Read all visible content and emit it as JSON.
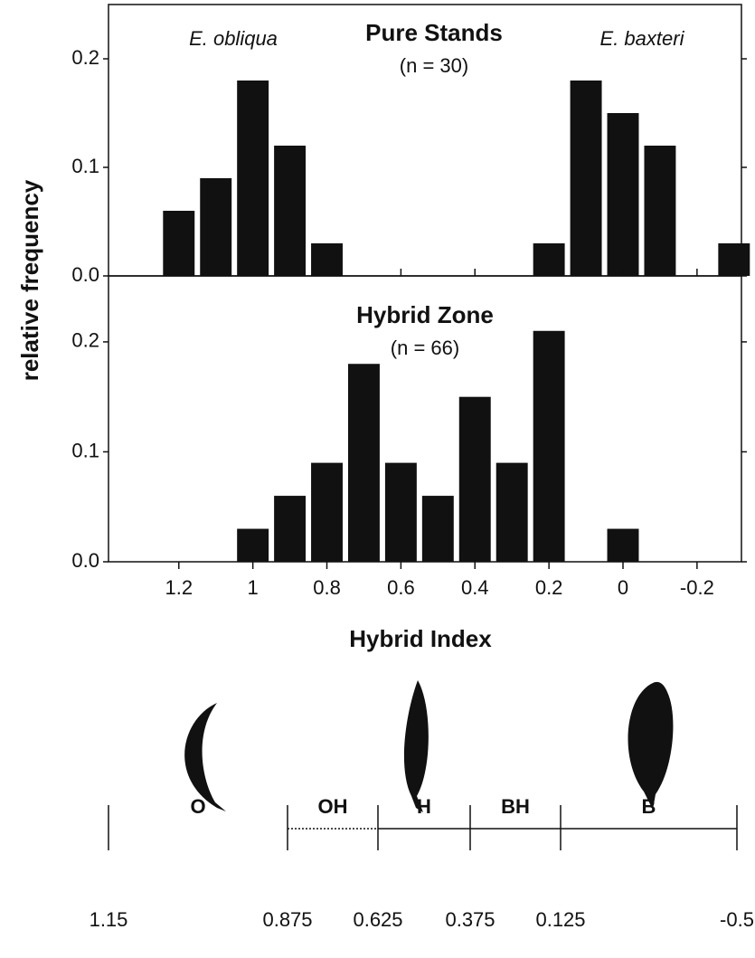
{
  "chart_data": [
    {
      "type": "histogram",
      "title": "Pure Stands",
      "subtitle": "(n = 30)",
      "annotations": [
        "E. obliqua",
        "E. baxteri"
      ],
      "ylabel": "relative frequency",
      "bins": [
        1.25,
        1.15,
        1.05,
        0.95,
        0.85,
        0.75,
        0.65,
        0.55,
        0.45,
        0.35,
        0.25,
        0.15,
        0.05,
        -0.05,
        -0.15,
        -0.25,
        -0.35
      ],
      "values": [
        0.06,
        0.09,
        0.18,
        0.12,
        0.03,
        0,
        0,
        0,
        0,
        0,
        0.03,
        0.18,
        0.15,
        0.12,
        0,
        0.03
      ],
      "color": "#111111",
      "xlim": [
        1.39,
        -0.32
      ],
      "ylim": [
        0,
        0.25
      ],
      "yticks": [
        {
          "value": 0,
          "label": "0.0"
        },
        0.1,
        0.2
      ]
    },
    {
      "type": "histogram",
      "title": "Hybrid Zone",
      "subtitle": "(n = 66)",
      "xlabel": "Hybrid Index",
      "bins": [
        1.25,
        1.15,
        1.05,
        0.95,
        0.85,
        0.75,
        0.65,
        0.55,
        0.45,
        0.35,
        0.25,
        0.15,
        0.05,
        -0.05,
        -0.15,
        -0.25,
        -0.35
      ],
      "values": [
        0,
        0,
        0.03,
        0.06,
        0.09,
        0.18,
        0.09,
        0.06,
        0.15,
        0.09,
        0.21,
        0,
        0.03,
        0,
        0,
        0
      ],
      "color": "#111111",
      "xlim": [
        1.39,
        -0.32
      ],
      "ylim": [
        0,
        0.26
      ],
      "yticks": [
        {
          "value": 0,
          "label": "0.0"
        },
        0.1,
        0.2
      ],
      "xticks": [
        1.2,
        1,
        0.8,
        0.6,
        0.4,
        0.2,
        0,
        -0.2
      ]
    }
  ],
  "leaf_classes": {
    "labels": [
      "O",
      "OH",
      "H",
      "BH",
      "B"
    ],
    "boundaries": [
      1.15,
      0.875,
      0.625,
      0.375,
      0.125,
      -0.5
    ]
  }
}
